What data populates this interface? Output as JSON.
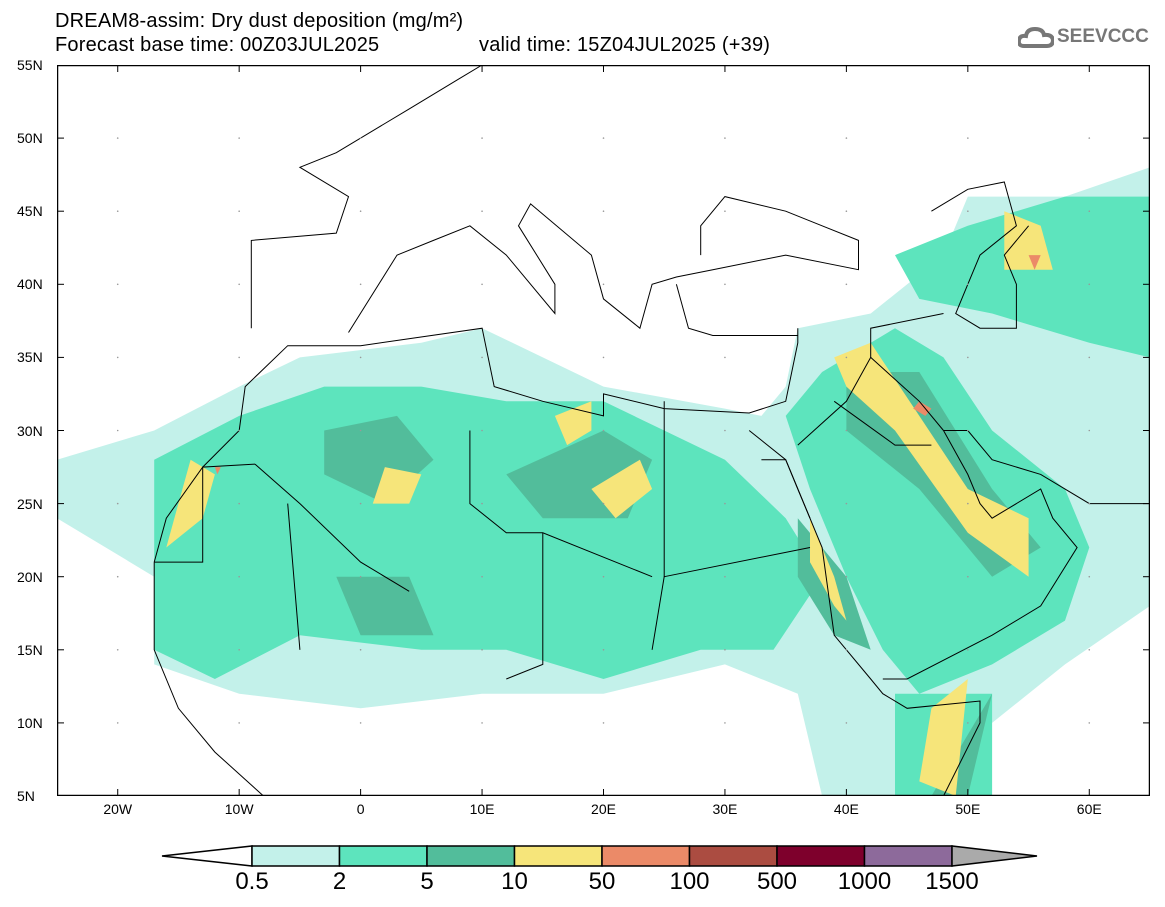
{
  "title": {
    "line1": "DREAM8-assim: Dry dust deposition (mg/m²)",
    "base": "Forecast base time: 00Z03JUL2025",
    "valid": "valid time: 15Z04JUL2025 (+39)"
  },
  "logo": {
    "text": "SEEVCCC",
    "icon": "cloud-icon"
  },
  "map": {
    "lon_range": [
      -25,
      65
    ],
    "lat_range": [
      5,
      55
    ],
    "lat_labels": [
      "55N",
      "50N",
      "45N",
      "40N",
      "35N",
      "30N",
      "25N",
      "20N",
      "15N",
      "10N",
      "5N"
    ],
    "lat_values": [
      55,
      50,
      45,
      40,
      35,
      30,
      25,
      20,
      15,
      10,
      5
    ],
    "lon_labels": [
      "20W",
      "10W",
      "0",
      "10E",
      "20E",
      "30E",
      "40E",
      "50E",
      "60E"
    ],
    "lon_values": [
      -20,
      -10,
      0,
      10,
      20,
      30,
      40,
      50,
      60
    ]
  },
  "legend": {
    "labels": [
      "0.5",
      "2",
      "5",
      "10",
      "50",
      "100",
      "500",
      "1000",
      "1500"
    ],
    "colors": [
      "#c3f1ea",
      "#5de4bd",
      "#52bd9b",
      "#f6e57a",
      "#eb8a68",
      "#ab4c41",
      "#7e002c",
      "#8d6a9b"
    ],
    "under_color": "#ffffff",
    "over_color": "#aaaaaa"
  }
}
